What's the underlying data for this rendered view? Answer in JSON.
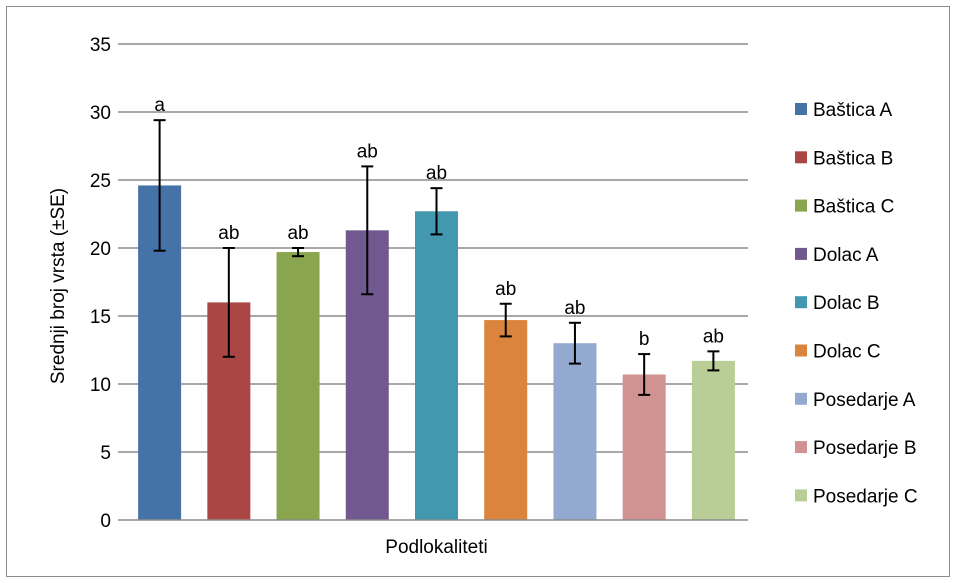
{
  "chart_data": {
    "type": "bar",
    "xlabel": "Podlokaliteti",
    "ylabel": "Srednji broj vrsta (±SE)",
    "ylim": [
      0,
      35
    ],
    "yticks": [
      0,
      5,
      10,
      15,
      20,
      25,
      30,
      35
    ],
    "grid": true,
    "legend_position": "right",
    "categories": [
      "Baštica A",
      "Baštica B",
      "Baštica C",
      "Dolac A",
      "Dolac B",
      "Dolac C",
      "Posedarje A",
      "Posedarje B",
      "Posedarje C"
    ],
    "values": [
      24.6,
      16.0,
      19.7,
      21.3,
      22.7,
      14.7,
      13.0,
      10.7,
      11.7
    ],
    "errors": [
      4.8,
      4.0,
      0.3,
      4.7,
      1.7,
      1.2,
      1.5,
      1.5,
      0.7
    ],
    "significance_labels": [
      "a",
      "ab",
      "ab",
      "ab",
      "ab",
      "ab",
      "ab",
      "b",
      "ab"
    ],
    "colors": [
      "#4572a7",
      "#aa4643",
      "#89a54e",
      "#71588f",
      "#4198af",
      "#db843d",
      "#93a9cf",
      "#d19392",
      "#b9cd96"
    ]
  }
}
